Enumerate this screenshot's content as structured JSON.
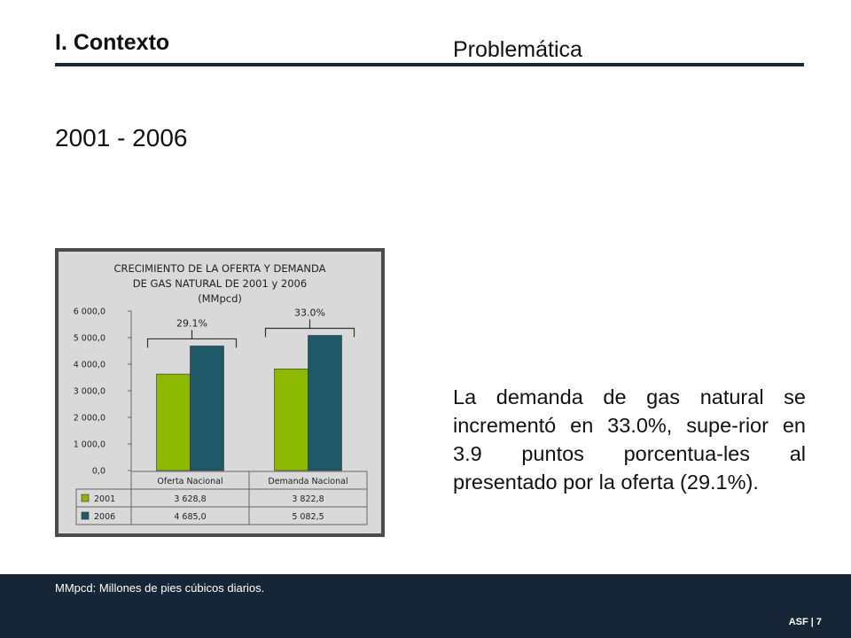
{
  "header": {
    "section": "I. Contexto",
    "subtitle": "Problemática",
    "period": "2001 - 2006"
  },
  "chart_data": {
    "type": "bar",
    "title_lines": [
      "CRECIMIENTO DE LA OFERTA Y DEMANDA",
      "DE GAS NATURAL DE 2001 y 2006",
      "(MMpcd)"
    ],
    "categories": [
      "Oferta Nacional",
      "Demanda Nacional"
    ],
    "series": [
      {
        "name": "2001",
        "values": [
          3628.8,
          3822.8
        ],
        "labels": [
          "3 628,8",
          "3 822,8"
        ],
        "color": "#8cb800"
      },
      {
        "name": "2006",
        "values": [
          4685.0,
          5082.5
        ],
        "labels": [
          "4 685,0",
          "5 082,5"
        ],
        "color": "#1f5866"
      }
    ],
    "annotations": [
      "29.1%",
      "33.0%"
    ],
    "ylim": [
      0,
      6000
    ],
    "y_ticks": [
      0,
      1000,
      2000,
      3000,
      4000,
      5000,
      6000
    ],
    "y_tick_labels": [
      "0,0",
      "1 000,0",
      "2 000,0",
      "3 000,0",
      "4 000,0",
      "5 000,0",
      "6 000,0"
    ],
    "legend_placement": "data table below plot"
  },
  "body_text": "La demanda de gas natural se incrementó en 33.0%, supe-rior en 3.9 puntos porcentua-les al presentado por la oferta (29.1%).",
  "footer": {
    "note": "MMpcd: Millones de pies cúbicos diarios.",
    "page_tag": "ASF | 7"
  }
}
